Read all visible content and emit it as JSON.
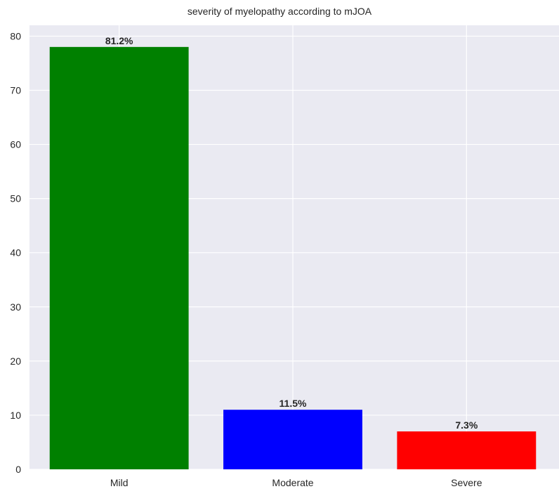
{
  "chart_data": {
    "type": "bar",
    "title": "severity of myelopathy according to mJOA",
    "categories": [
      "Mild",
      "Moderate",
      "Severe"
    ],
    "values": [
      78,
      11,
      7
    ],
    "bar_labels": [
      "81.2%",
      "11.5%",
      "7.3%"
    ],
    "colors": [
      "#008000",
      "#0000ff",
      "#ff0000"
    ],
    "xlabel": "",
    "ylabel": "",
    "ylim": [
      0,
      82
    ],
    "yticks": [
      0,
      10,
      20,
      30,
      40,
      50,
      60,
      70,
      80
    ],
    "grid": true,
    "background": "#eaeaf2"
  }
}
